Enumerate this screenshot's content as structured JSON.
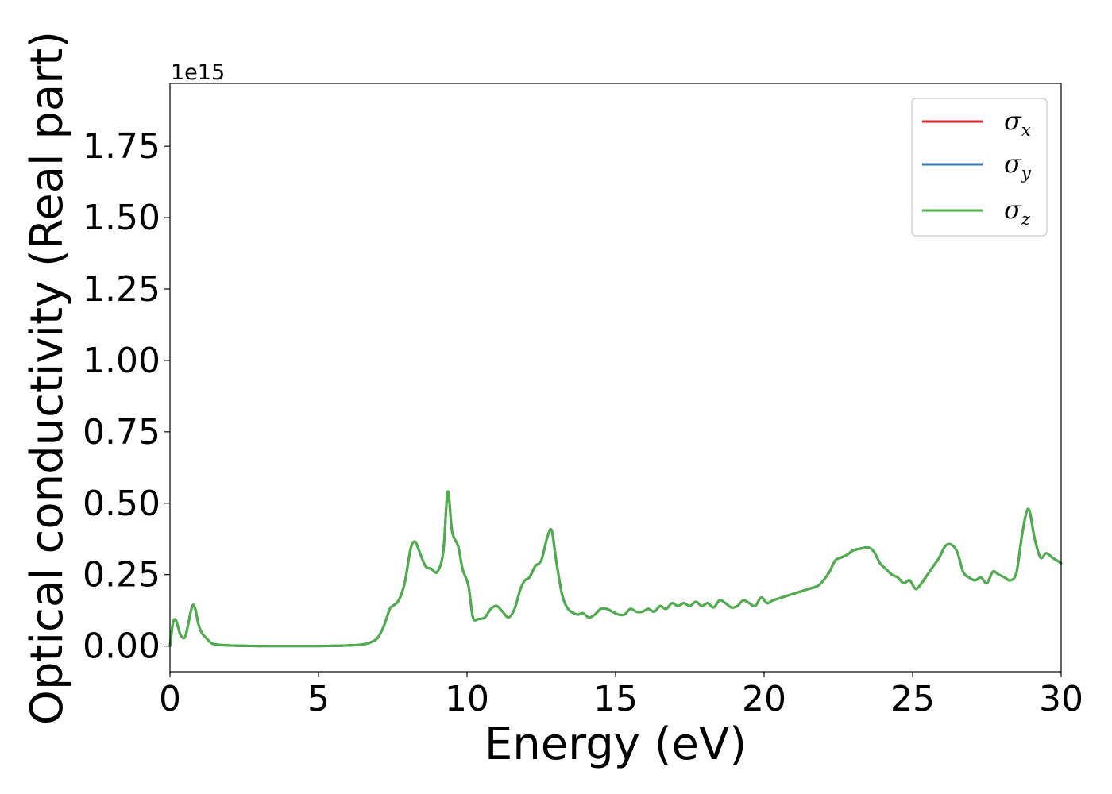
{
  "chart_data": {
    "type": "line",
    "title": "",
    "xlabel": "Energy (eV)",
    "ylabel": "Optical conductivity (Real part)",
    "y_offset_label": "1e15",
    "xlim": [
      0,
      30
    ],
    "ylim": [
      -0.09,
      1.97
    ],
    "x_ticks": [
      0,
      5,
      10,
      15,
      20,
      25,
      30
    ],
    "x_tick_labels": [
      "0",
      "5",
      "10",
      "15",
      "20",
      "25",
      "30"
    ],
    "y_ticks": [
      0.0,
      0.25,
      0.5,
      0.75,
      1.0,
      1.25,
      1.5,
      1.75
    ],
    "y_tick_labels": [
      "0.00",
      "0.25",
      "0.50",
      "0.75",
      "1.00",
      "1.25",
      "1.50",
      "1.75"
    ],
    "grid": false,
    "legend_position": "top-right",
    "x": [
      0,
      0.1,
      0.2,
      0.35,
      0.5,
      0.6,
      0.75,
      0.85,
      0.95,
      1.05,
      1.2,
      1.4,
      1.6,
      2.0,
      3.0,
      4.0,
      5.0,
      6.0,
      6.5,
      6.8,
      7.0,
      7.2,
      7.4,
      7.5,
      7.7,
      7.9,
      8.1,
      8.25,
      8.4,
      8.6,
      8.8,
      9.0,
      9.2,
      9.35,
      9.5,
      9.7,
      9.85,
      10.05,
      10.2,
      10.4,
      10.6,
      10.8,
      11.0,
      11.2,
      11.4,
      11.6,
      11.8,
      11.95,
      12.1,
      12.3,
      12.5,
      12.7,
      12.85,
      13.0,
      13.2,
      13.4,
      13.6,
      13.75,
      13.9,
      14.1,
      14.3,
      14.5,
      14.7,
      14.9,
      15.1,
      15.3,
      15.5,
      15.7,
      15.9,
      16.1,
      16.3,
      16.5,
      16.7,
      16.9,
      17.1,
      17.3,
      17.5,
      17.7,
      17.9,
      18.1,
      18.3,
      18.5,
      18.7,
      18.9,
      19.1,
      19.3,
      19.5,
      19.7,
      19.9,
      20.1,
      20.3,
      20.6,
      20.9,
      21.2,
      21.5,
      21.8,
      22.0,
      22.2,
      22.4,
      22.6,
      22.8,
      23.0,
      23.2,
      23.5,
      23.7,
      23.9,
      24.1,
      24.3,
      24.5,
      24.7,
      24.9,
      25.1,
      25.3,
      25.5,
      25.7,
      25.9,
      26.1,
      26.3,
      26.5,
      26.7,
      26.9,
      27.1,
      27.3,
      27.5,
      27.7,
      27.9,
      28.1,
      28.3,
      28.5,
      28.7,
      28.9,
      29.1,
      29.3,
      29.5,
      29.7,
      29.85,
      30.0
    ],
    "series": [
      {
        "name": "σx",
        "symbol": "σ",
        "subscript": "x",
        "color": "#d62728",
        "values": [
          0.0,
          0.08,
          0.09,
          0.04,
          0.03,
          0.07,
          0.14,
          0.13,
          0.08,
          0.05,
          0.03,
          0.01,
          0.005,
          0.002,
          0.0,
          0.0,
          0.0,
          0.002,
          0.006,
          0.015,
          0.03,
          0.07,
          0.13,
          0.14,
          0.16,
          0.22,
          0.34,
          0.365,
          0.33,
          0.28,
          0.27,
          0.26,
          0.33,
          0.54,
          0.4,
          0.35,
          0.27,
          0.21,
          0.1,
          0.095,
          0.1,
          0.13,
          0.14,
          0.12,
          0.1,
          0.13,
          0.2,
          0.23,
          0.24,
          0.28,
          0.3,
          0.38,
          0.405,
          0.3,
          0.18,
          0.13,
          0.115,
          0.11,
          0.115,
          0.1,
          0.11,
          0.13,
          0.13,
          0.12,
          0.11,
          0.11,
          0.13,
          0.12,
          0.12,
          0.13,
          0.12,
          0.14,
          0.13,
          0.15,
          0.14,
          0.15,
          0.14,
          0.155,
          0.14,
          0.15,
          0.135,
          0.16,
          0.15,
          0.135,
          0.14,
          0.16,
          0.15,
          0.14,
          0.17,
          0.15,
          0.16,
          0.17,
          0.18,
          0.19,
          0.2,
          0.21,
          0.23,
          0.26,
          0.3,
          0.31,
          0.32,
          0.335,
          0.34,
          0.345,
          0.33,
          0.29,
          0.27,
          0.25,
          0.24,
          0.22,
          0.23,
          0.2,
          0.22,
          0.25,
          0.28,
          0.31,
          0.35,
          0.355,
          0.33,
          0.26,
          0.24,
          0.23,
          0.24,
          0.22,
          0.26,
          0.25,
          0.24,
          0.23,
          0.26,
          0.4,
          0.48,
          0.38,
          0.31,
          0.325,
          0.31,
          0.3,
          0.29
        ]
      },
      {
        "name": "σy",
        "symbol": "σ",
        "subscript": "y",
        "color": "#3a7ab8",
        "values": [
          0.0,
          0.08,
          0.09,
          0.04,
          0.03,
          0.07,
          0.14,
          0.13,
          0.08,
          0.05,
          0.03,
          0.01,
          0.005,
          0.002,
          0.0,
          0.0,
          0.0,
          0.002,
          0.006,
          0.015,
          0.03,
          0.07,
          0.13,
          0.14,
          0.16,
          0.22,
          0.34,
          0.365,
          0.33,
          0.28,
          0.27,
          0.26,
          0.33,
          0.54,
          0.4,
          0.35,
          0.27,
          0.21,
          0.1,
          0.095,
          0.1,
          0.13,
          0.14,
          0.12,
          0.1,
          0.13,
          0.2,
          0.23,
          0.24,
          0.28,
          0.3,
          0.38,
          0.405,
          0.3,
          0.18,
          0.13,
          0.115,
          0.11,
          0.115,
          0.1,
          0.11,
          0.13,
          0.13,
          0.12,
          0.11,
          0.11,
          0.13,
          0.12,
          0.12,
          0.13,
          0.12,
          0.14,
          0.13,
          0.15,
          0.14,
          0.15,
          0.14,
          0.155,
          0.14,
          0.15,
          0.135,
          0.16,
          0.15,
          0.135,
          0.14,
          0.16,
          0.15,
          0.14,
          0.17,
          0.15,
          0.16,
          0.17,
          0.18,
          0.19,
          0.2,
          0.21,
          0.23,
          0.26,
          0.3,
          0.31,
          0.32,
          0.335,
          0.34,
          0.345,
          0.33,
          0.29,
          0.27,
          0.25,
          0.24,
          0.22,
          0.23,
          0.2,
          0.22,
          0.25,
          0.28,
          0.31,
          0.35,
          0.355,
          0.33,
          0.26,
          0.24,
          0.23,
          0.24,
          0.22,
          0.26,
          0.25,
          0.24,
          0.23,
          0.26,
          0.4,
          0.48,
          0.38,
          0.31,
          0.325,
          0.31,
          0.3,
          0.29
        ]
      },
      {
        "name": "σz",
        "symbol": "σ",
        "subscript": "z",
        "color": "#4daf4a",
        "values": [
          0.0,
          0.08,
          0.09,
          0.04,
          0.03,
          0.07,
          0.14,
          0.13,
          0.08,
          0.05,
          0.03,
          0.01,
          0.005,
          0.002,
          0.0,
          0.0,
          0.0,
          0.002,
          0.006,
          0.015,
          0.03,
          0.07,
          0.13,
          0.14,
          0.16,
          0.22,
          0.34,
          0.365,
          0.33,
          0.28,
          0.27,
          0.26,
          0.33,
          0.54,
          0.4,
          0.35,
          0.27,
          0.21,
          0.1,
          0.095,
          0.1,
          0.13,
          0.14,
          0.12,
          0.1,
          0.13,
          0.2,
          0.23,
          0.24,
          0.28,
          0.3,
          0.38,
          0.405,
          0.3,
          0.18,
          0.13,
          0.115,
          0.11,
          0.115,
          0.1,
          0.11,
          0.13,
          0.13,
          0.12,
          0.11,
          0.11,
          0.13,
          0.12,
          0.12,
          0.13,
          0.12,
          0.14,
          0.13,
          0.15,
          0.14,
          0.15,
          0.14,
          0.155,
          0.14,
          0.15,
          0.135,
          0.16,
          0.15,
          0.135,
          0.14,
          0.16,
          0.15,
          0.14,
          0.17,
          0.15,
          0.16,
          0.17,
          0.18,
          0.19,
          0.2,
          0.21,
          0.23,
          0.26,
          0.3,
          0.31,
          0.32,
          0.335,
          0.34,
          0.345,
          0.33,
          0.29,
          0.27,
          0.25,
          0.24,
          0.22,
          0.23,
          0.2,
          0.22,
          0.25,
          0.28,
          0.31,
          0.35,
          0.355,
          0.33,
          0.26,
          0.24,
          0.23,
          0.24,
          0.22,
          0.26,
          0.25,
          0.24,
          0.23,
          0.26,
          0.4,
          0.48,
          0.38,
          0.31,
          0.325,
          0.31,
          0.3,
          0.29
        ]
      }
    ]
  }
}
